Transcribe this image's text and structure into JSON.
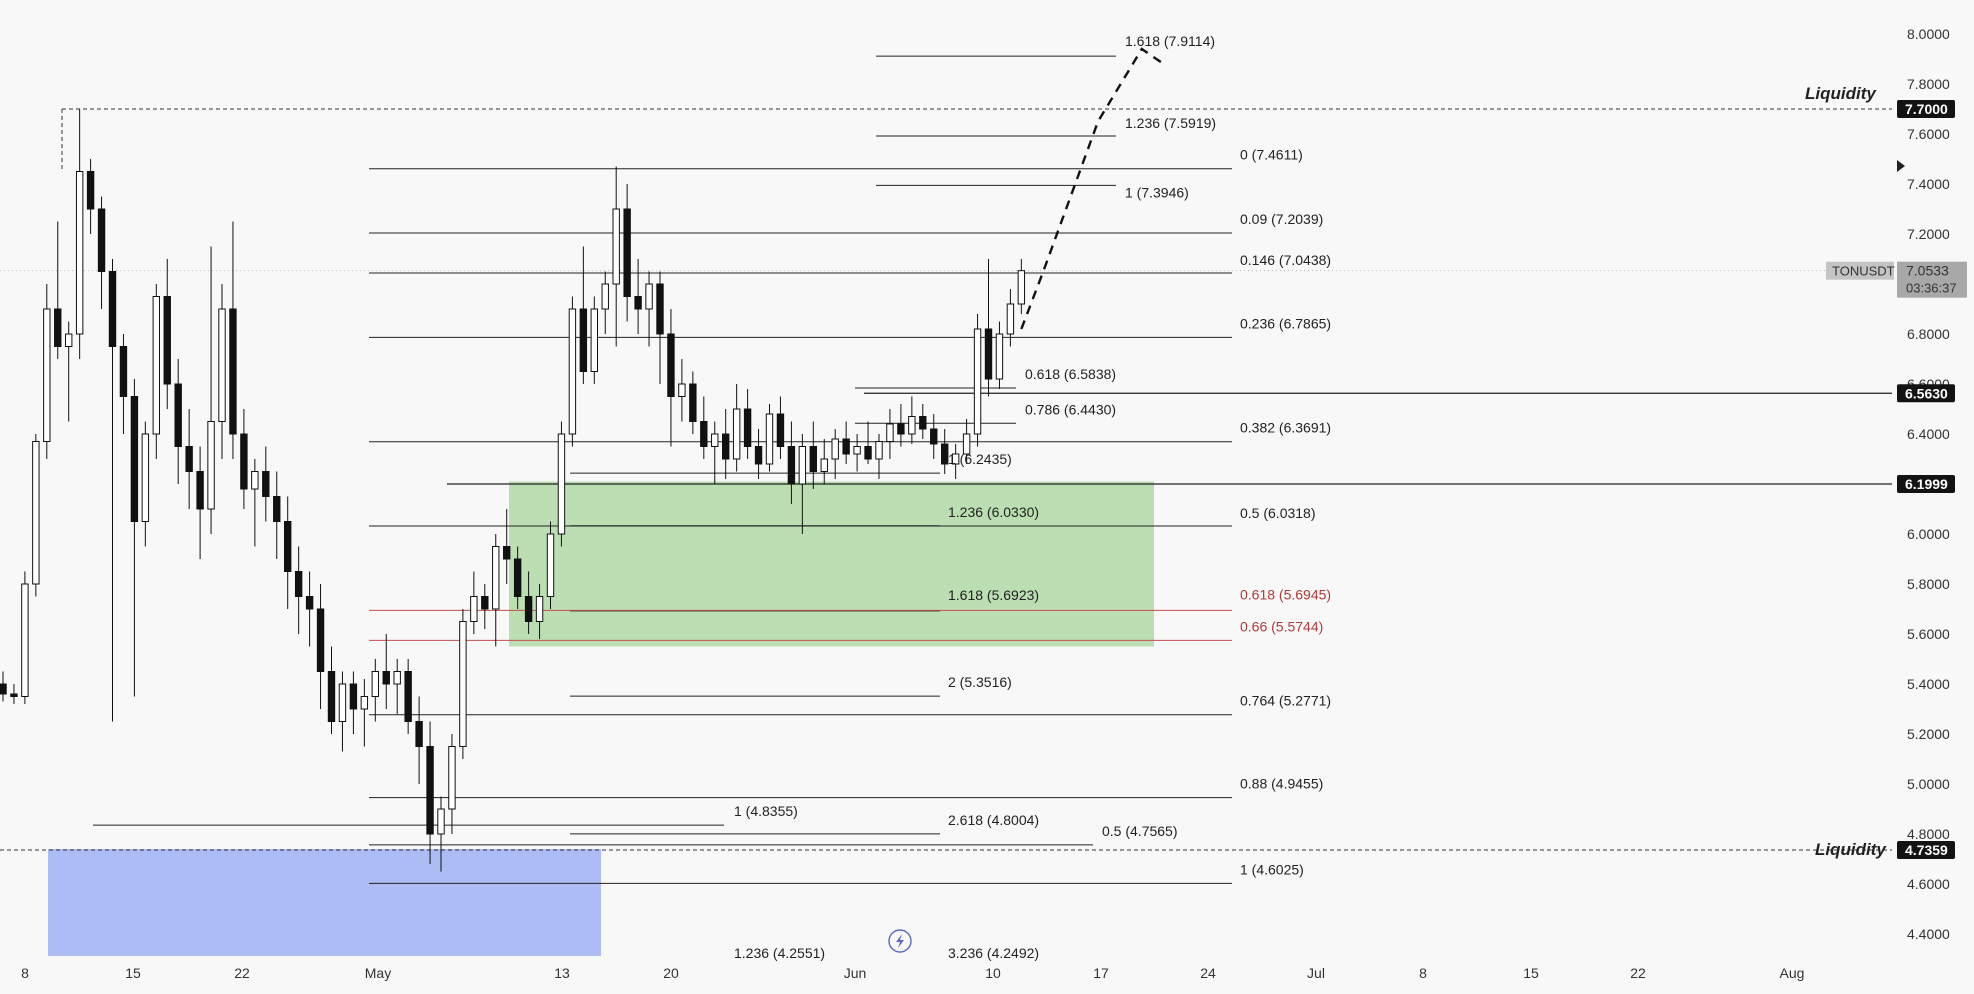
{
  "chart_data": {
    "type": "candlestick",
    "symbol": "TONUSDT",
    "last_price": "7.0533",
    "countdown": "03:36:37",
    "ylim": [
      4.3,
      8.1
    ],
    "y_ticks": [
      "8.0000",
      "7.8000",
      "7.6000",
      "7.4000",
      "7.2000",
      "7.0000",
      "6.8000",
      "6.6000",
      "6.4000",
      "6.2000",
      "6.0000",
      "5.8000",
      "5.6000",
      "5.4000",
      "5.2000",
      "5.0000",
      "4.8000",
      "4.6000",
      "4.4000"
    ],
    "x_ticks": [
      "8",
      "15",
      "22",
      "May",
      "13",
      "20",
      "Jun",
      "10",
      "17",
      "24",
      "Jul",
      "8",
      "15",
      "22",
      "Aug"
    ],
    "price_badges": [
      {
        "label": "7.7000",
        "value": 7.7
      },
      {
        "label": "6.5630",
        "value": 6.563
      },
      {
        "label": "6.1999",
        "value": 6.1999
      },
      {
        "label": "4.7359",
        "value": 4.7359
      }
    ],
    "liquidity_labels": [
      {
        "text": "Liquidity",
        "value": 7.7
      },
      {
        "text": "Liquidity",
        "value": 4.7359
      }
    ],
    "fib_levels": [
      {
        "label": "1.618 (7.9114)",
        "value": 7.9114
      },
      {
        "label": "1.236 (7.5919)",
        "value": 7.5919
      },
      {
        "label": "0 (7.4611)",
        "value": 7.4611
      },
      {
        "label": "1 (7.3946)",
        "value": 7.3946
      },
      {
        "label": "0.09 (7.2039)",
        "value": 7.2039
      },
      {
        "label": "0.146 (7.0438)",
        "value": 7.0438
      },
      {
        "label": "0.236 (6.7865)",
        "value": 6.7865
      },
      {
        "label": "0.618 (6.5838)",
        "value": 6.5838
      },
      {
        "label": "0.786 (6.4430)",
        "value": 6.443
      },
      {
        "label": "0.382 (6.3691)",
        "value": 6.3691
      },
      {
        "label": "1 (6.2435)",
        "value": 6.2435
      },
      {
        "label": "1.236 (6.0330)",
        "value": 6.033
      },
      {
        "label": "0.5 (6.0318)",
        "value": 6.0318
      },
      {
        "label": "1.618 (5.6923)",
        "value": 5.6923
      },
      {
        "label": "0.618 (5.6945)",
        "value": 5.6945
      },
      {
        "label": "0.66 (5.5744)",
        "value": 5.5744
      },
      {
        "label": "2 (5.3516)",
        "value": 5.3516
      },
      {
        "label": "0.764 (5.2771)",
        "value": 5.2771
      },
      {
        "label": "0.88 (4.9455)",
        "value": 4.9455
      },
      {
        "label": "1 (4.8355)",
        "value": 4.8355
      },
      {
        "label": "2.618 (4.8004)",
        "value": 4.8004
      },
      {
        "label": "0.5 (4.7565)",
        "value": 4.7565
      },
      {
        "label": "1 (4.6025)",
        "value": 4.6025
      },
      {
        "label": "1.236 (4.2551)",
        "value": 4.2551
      },
      {
        "label": "3.236 (4.2492)",
        "value": 4.2492
      }
    ],
    "zones": [
      {
        "name": "green-zone",
        "top": 6.21,
        "bottom": 5.55,
        "color": "#b7dcae"
      },
      {
        "name": "blue-zone",
        "top": 4.74,
        "bottom": 4.3,
        "color": "#a9b8f3"
      }
    ],
    "candles": [
      {
        "o": 5.4,
        "h": 5.45,
        "l": 5.33,
        "c": 5.36
      },
      {
        "o": 5.36,
        "h": 5.4,
        "l": 5.32,
        "c": 5.35
      },
      {
        "o": 5.35,
        "h": 5.85,
        "l": 5.32,
        "c": 5.8
      },
      {
        "o": 5.8,
        "h": 6.4,
        "l": 5.75,
        "c": 6.37
      },
      {
        "o": 6.37,
        "h": 7.0,
        "l": 6.3,
        "c": 6.9
      },
      {
        "o": 6.9,
        "h": 7.25,
        "l": 6.7,
        "c": 6.75
      },
      {
        "o": 6.75,
        "h": 6.85,
        "l": 6.45,
        "c": 6.8
      },
      {
        "o": 6.8,
        "h": 7.7,
        "l": 6.7,
        "c": 7.45
      },
      {
        "o": 7.45,
        "h": 7.5,
        "l": 7.2,
        "c": 7.3
      },
      {
        "o": 7.3,
        "h": 7.35,
        "l": 6.9,
        "c": 7.05
      },
      {
        "o": 7.05,
        "h": 7.1,
        "l": 5.25,
        "c": 6.75
      },
      {
        "o": 6.75,
        "h": 6.8,
        "l": 6.4,
        "c": 6.55
      },
      {
        "o": 6.55,
        "h": 6.62,
        "l": 5.35,
        "c": 6.05
      },
      {
        "o": 6.05,
        "h": 6.45,
        "l": 5.95,
        "c": 6.4
      },
      {
        "o": 6.4,
        "h": 7.0,
        "l": 6.3,
        "c": 6.95
      },
      {
        "o": 6.95,
        "h": 7.1,
        "l": 6.5,
        "c": 6.6
      },
      {
        "o": 6.6,
        "h": 6.7,
        "l": 6.2,
        "c": 6.35
      },
      {
        "o": 6.35,
        "h": 6.5,
        "l": 6.1,
        "c": 6.25
      },
      {
        "o": 6.25,
        "h": 6.35,
        "l": 5.9,
        "c": 6.1
      },
      {
        "o": 6.1,
        "h": 7.15,
        "l": 6.0,
        "c": 6.45
      },
      {
        "o": 6.45,
        "h": 7.0,
        "l": 6.3,
        "c": 6.9
      },
      {
        "o": 6.9,
        "h": 7.25,
        "l": 6.3,
        "c": 6.4
      },
      {
        "o": 6.4,
        "h": 6.5,
        "l": 6.1,
        "c": 6.18
      },
      {
        "o": 6.18,
        "h": 6.3,
        "l": 5.95,
        "c": 6.25
      },
      {
        "o": 6.25,
        "h": 6.35,
        "l": 6.05,
        "c": 6.15
      },
      {
        "o": 6.15,
        "h": 6.25,
        "l": 5.9,
        "c": 6.05
      },
      {
        "o": 6.05,
        "h": 6.15,
        "l": 5.7,
        "c": 5.85
      },
      {
        "o": 5.85,
        "h": 5.95,
        "l": 5.6,
        "c": 5.75
      },
      {
        "o": 5.75,
        "h": 5.85,
        "l": 5.55,
        "c": 5.7
      },
      {
        "o": 5.7,
        "h": 5.8,
        "l": 5.3,
        "c": 5.45
      },
      {
        "o": 5.45,
        "h": 5.55,
        "l": 5.2,
        "c": 5.25
      },
      {
        "o": 5.25,
        "h": 5.45,
        "l": 5.13,
        "c": 5.4
      },
      {
        "o": 5.4,
        "h": 5.45,
        "l": 5.2,
        "c": 5.3
      },
      {
        "o": 5.3,
        "h": 5.42,
        "l": 5.15,
        "c": 5.35
      },
      {
        "o": 5.35,
        "h": 5.5,
        "l": 5.25,
        "c": 5.45
      },
      {
        "o": 5.45,
        "h": 5.6,
        "l": 5.3,
        "c": 5.4
      },
      {
        "o": 5.4,
        "h": 5.5,
        "l": 5.28,
        "c": 5.45
      },
      {
        "o": 5.45,
        "h": 5.5,
        "l": 5.2,
        "c": 5.25
      },
      {
        "o": 5.25,
        "h": 5.35,
        "l": 5.0,
        "c": 5.15
      },
      {
        "o": 5.15,
        "h": 5.25,
        "l": 4.68,
        "c": 4.8
      },
      {
        "o": 4.8,
        "h": 4.95,
        "l": 4.65,
        "c": 4.9
      },
      {
        "o": 4.9,
        "h": 5.2,
        "l": 4.8,
        "c": 5.15
      },
      {
        "o": 5.15,
        "h": 5.7,
        "l": 5.1,
        "c": 5.65
      },
      {
        "o": 5.65,
        "h": 5.85,
        "l": 5.6,
        "c": 5.75
      },
      {
        "o": 5.75,
        "h": 5.8,
        "l": 5.62,
        "c": 5.7
      },
      {
        "o": 5.7,
        "h": 6.0,
        "l": 5.55,
        "c": 5.95
      },
      {
        "o": 5.95,
        "h": 6.1,
        "l": 5.8,
        "c": 5.9
      },
      {
        "o": 5.9,
        "h": 5.95,
        "l": 5.7,
        "c": 5.75
      },
      {
        "o": 5.75,
        "h": 5.85,
        "l": 5.6,
        "c": 5.65
      },
      {
        "o": 5.65,
        "h": 5.8,
        "l": 5.58,
        "c": 5.75
      },
      {
        "o": 5.75,
        "h": 6.05,
        "l": 5.7,
        "c": 6.0
      },
      {
        "o": 6.0,
        "h": 6.45,
        "l": 5.95,
        "c": 6.4
      },
      {
        "o": 6.4,
        "h": 6.95,
        "l": 6.35,
        "c": 6.9
      },
      {
        "o": 6.9,
        "h": 7.15,
        "l": 6.6,
        "c": 6.65
      },
      {
        "o": 6.65,
        "h": 6.95,
        "l": 6.6,
        "c": 6.9
      },
      {
        "o": 6.9,
        "h": 7.05,
        "l": 6.8,
        "c": 7.0
      },
      {
        "o": 7.0,
        "h": 7.47,
        "l": 6.75,
        "c": 7.3
      },
      {
        "o": 7.3,
        "h": 7.4,
        "l": 6.85,
        "c": 6.95
      },
      {
        "o": 6.95,
        "h": 7.1,
        "l": 6.8,
        "c": 6.9
      },
      {
        "o": 6.9,
        "h": 7.05,
        "l": 6.75,
        "c": 7.0
      },
      {
        "o": 7.0,
        "h": 7.05,
        "l": 6.6,
        "c": 6.8
      },
      {
        "o": 6.8,
        "h": 6.9,
        "l": 6.35,
        "c": 6.55
      },
      {
        "o": 6.55,
        "h": 6.7,
        "l": 6.45,
        "c": 6.6
      },
      {
        "o": 6.6,
        "h": 6.65,
        "l": 6.4,
        "c": 6.45
      },
      {
        "o": 6.45,
        "h": 6.55,
        "l": 6.3,
        "c": 6.35
      },
      {
        "o": 6.35,
        "h": 6.45,
        "l": 6.2,
        "c": 6.4
      },
      {
        "o": 6.4,
        "h": 6.5,
        "l": 6.22,
        "c": 6.3
      },
      {
        "o": 6.3,
        "h": 6.6,
        "l": 6.25,
        "c": 6.5
      },
      {
        "o": 6.5,
        "h": 6.58,
        "l": 6.3,
        "c": 6.35
      },
      {
        "o": 6.35,
        "h": 6.42,
        "l": 6.22,
        "c": 6.28
      },
      {
        "o": 6.28,
        "h": 6.52,
        "l": 6.25,
        "c": 6.48
      },
      {
        "o": 6.48,
        "h": 6.55,
        "l": 6.3,
        "c": 6.35
      },
      {
        "o": 6.35,
        "h": 6.45,
        "l": 6.12,
        "c": 6.2
      },
      {
        "o": 6.2,
        "h": 6.4,
        "l": 6.0,
        "c": 6.35
      },
      {
        "o": 6.35,
        "h": 6.45,
        "l": 6.18,
        "c": 6.25
      },
      {
        "o": 6.25,
        "h": 6.38,
        "l": 6.2,
        "c": 6.3
      },
      {
        "o": 6.3,
        "h": 6.42,
        "l": 6.22,
        "c": 6.38
      },
      {
        "o": 6.38,
        "h": 6.45,
        "l": 6.28,
        "c": 6.32
      },
      {
        "o": 6.32,
        "h": 6.4,
        "l": 6.25,
        "c": 6.35
      },
      {
        "o": 6.35,
        "h": 6.45,
        "l": 6.28,
        "c": 6.3
      },
      {
        "o": 6.3,
        "h": 6.4,
        "l": 6.22,
        "c": 6.37
      },
      {
        "o": 6.37,
        "h": 6.5,
        "l": 6.3,
        "c": 6.44
      },
      {
        "o": 6.44,
        "h": 6.52,
        "l": 6.35,
        "c": 6.4
      },
      {
        "o": 6.4,
        "h": 6.55,
        "l": 6.36,
        "c": 6.47
      },
      {
        "o": 6.47,
        "h": 6.52,
        "l": 6.38,
        "c": 6.42
      },
      {
        "o": 6.42,
        "h": 6.48,
        "l": 6.3,
        "c": 6.36
      },
      {
        "o": 6.36,
        "h": 6.42,
        "l": 6.24,
        "c": 6.28
      },
      {
        "o": 6.28,
        "h": 6.36,
        "l": 6.22,
        "c": 6.32
      },
      {
        "o": 6.32,
        "h": 6.46,
        "l": 6.28,
        "c": 6.4
      },
      {
        "o": 6.4,
        "h": 6.88,
        "l": 6.35,
        "c": 6.82
      },
      {
        "o": 6.82,
        "h": 7.1,
        "l": 6.55,
        "c": 6.62
      },
      {
        "o": 6.62,
        "h": 6.85,
        "l": 6.58,
        "c": 6.8
      },
      {
        "o": 6.8,
        "h": 6.98,
        "l": 6.75,
        "c": 6.92
      },
      {
        "o": 6.92,
        "h": 7.1,
        "l": 6.88,
        "c": 7.0533
      }
    ],
    "projection": [
      {
        "i": 93,
        "y": 6.82
      },
      {
        "i": 95,
        "y": 7.05
      },
      {
        "i": 100,
        "y": 7.65
      },
      {
        "i": 104,
        "y": 7.94
      },
      {
        "i": 106,
        "y": 7.88
      }
    ]
  }
}
